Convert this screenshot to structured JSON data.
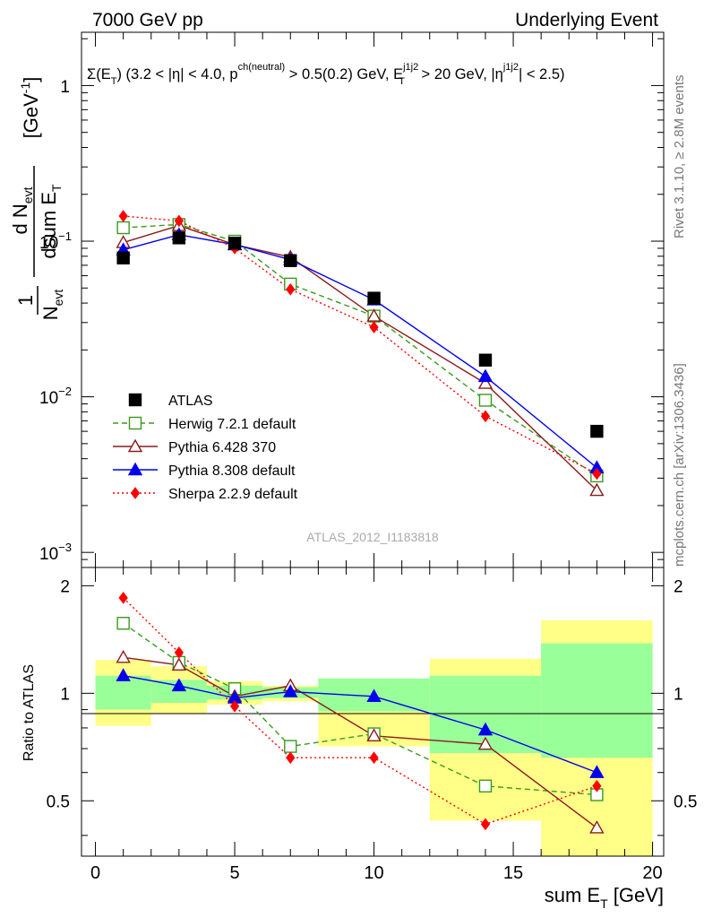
{
  "header": {
    "left": "7000 GeV pp",
    "right": "Underlying Event"
  },
  "selection_text": "Σ(E_T) (3.2 < |η| < 4.0, p^ch(neutral) > 0.5(0.2) GeV, E_T^j1j2 > 20 GeV, |η^j1j2| < 2.5)",
  "side_labels": {
    "rivet": "Rivet 3.1.10, ≥ 2.8M events",
    "mcplots": "mcplots.cern.ch [arXiv:1306.3436]"
  },
  "analysis_id": "ATLAS_2012_I1183818",
  "chart_data": [
    {
      "type": "scatter",
      "panel": "main",
      "ylabel": "1/N_evt dN_evt/dsum E_T [GeV^-1]",
      "yscale": "log",
      "ylim": [
        0.0008,
        2.2
      ],
      "xlim": [
        -0.5,
        20.4
      ],
      "ytick_labels": [
        "10^-3",
        "10^-2",
        "10^-1",
        "1"
      ],
      "x": [
        1,
        3,
        5,
        7,
        10,
        14,
        18
      ],
      "series": [
        {
          "name": "ATLAS",
          "color": "#000000",
          "marker": "square-filled",
          "values": [
            0.078,
            0.105,
            0.097,
            0.075,
            0.043,
            0.0172,
            0.006
          ]
        },
        {
          "name": "Herwig 7.2.1 default",
          "color": "#3a9a1e",
          "marker": "square-open",
          "line": "dashed",
          "values": [
            0.122,
            0.128,
            0.1,
            0.053,
            0.033,
            0.0095,
            0.0031
          ]
        },
        {
          "name": "Pythia 6.428 370",
          "color": "#8b1a1a",
          "marker": "triangle-open",
          "line": "solid",
          "values": [
            0.098,
            0.126,
            0.095,
            0.079,
            0.033,
            0.0122,
            0.0025
          ]
        },
        {
          "name": "Pythia 8.308 default",
          "color": "#0000ee",
          "marker": "triangle-filled",
          "line": "solid",
          "values": [
            0.088,
            0.11,
            0.095,
            0.076,
            0.042,
            0.0135,
            0.0035
          ]
        },
        {
          "name": "Sherpa 2.2.9 default",
          "color": "#ff0000",
          "marker": "diamond-filled",
          "line": "dotted",
          "values": [
            0.145,
            0.135,
            0.09,
            0.049,
            0.028,
            0.0075,
            0.0032
          ]
        }
      ],
      "legend_position": "lower-left"
    },
    {
      "type": "scatter",
      "panel": "ratio",
      "xlabel": "sum E_T [GeV]",
      "ylabel": "Ratio to ATLAS",
      "ylim": [
        0.35,
        2.25
      ],
      "xlim": [
        -0.5,
        20.4
      ],
      "xticks": [
        0,
        5,
        10,
        15,
        20
      ],
      "yticks": [
        0.5,
        1,
        2
      ],
      "bins": [
        [
          0,
          2
        ],
        [
          2,
          4
        ],
        [
          4,
          6
        ],
        [
          6,
          8
        ],
        [
          8,
          12
        ],
        [
          12,
          16
        ],
        [
          16,
          20
        ]
      ],
      "band_inner": [
        [
          0.9,
          1.12
        ],
        [
          0.94,
          1.09
        ],
        [
          0.96,
          1.05
        ],
        [
          0.97,
          1.04
        ],
        [
          0.89,
          1.1
        ],
        [
          0.68,
          1.12
        ],
        [
          0.66,
          1.38
        ]
      ],
      "band_outer": [
        [
          0.81,
          1.24
        ],
        [
          0.88,
          1.19
        ],
        [
          0.93,
          1.08
        ],
        [
          0.95,
          1.05
        ],
        [
          0.71,
          1.1
        ],
        [
          0.44,
          1.25
        ],
        [
          0.33,
          1.6
        ]
      ],
      "x": [
        1,
        3,
        5,
        7,
        10,
        14,
        18
      ],
      "series": [
        {
          "name": "Herwig 7.2.1 default",
          "values": [
            1.57,
            1.22,
            1.03,
            0.71,
            0.77,
            0.55,
            0.52
          ]
        },
        {
          "name": "Pythia 6.428 370",
          "values": [
            1.26,
            1.2,
            0.98,
            1.05,
            0.76,
            0.72,
            0.42
          ]
        },
        {
          "name": "Pythia 8.308 default",
          "values": [
            1.12,
            1.05,
            0.97,
            1.01,
            0.98,
            0.79,
            0.6
          ]
        },
        {
          "name": "Sherpa 2.2.9 default",
          "values": [
            1.85,
            1.3,
            0.92,
            0.66,
            0.66,
            0.43,
            0.55
          ]
        }
      ]
    }
  ]
}
